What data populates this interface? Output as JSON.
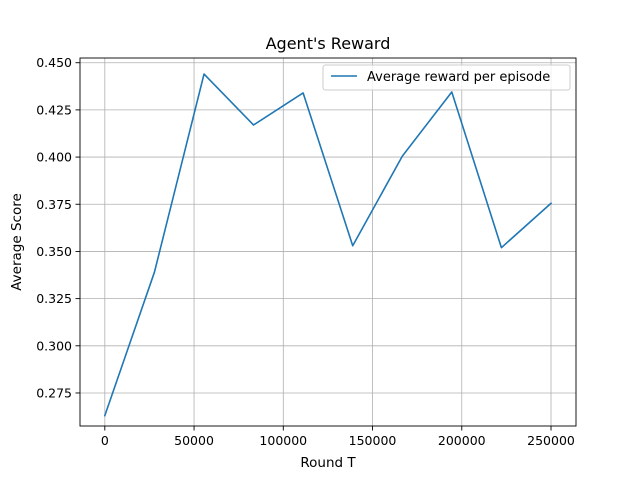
{
  "chart_data": {
    "type": "line",
    "title": "Agent's Reward",
    "xlabel": "Round T",
    "ylabel": "Average Score",
    "xlim": [
      -13900,
      264000
    ],
    "ylim": [
      0.2575,
      0.4525
    ],
    "grid": true,
    "legend_position": "top-right",
    "x_ticks": [
      0,
      50000,
      100000,
      150000,
      200000,
      250000
    ],
    "x_tick_labels": [
      "0",
      "50000",
      "100000",
      "150000",
      "200000",
      "250000"
    ],
    "y_ticks": [
      0.275,
      0.3,
      0.325,
      0.35,
      0.375,
      0.4,
      0.425,
      0.45
    ],
    "y_tick_labels": [
      "0.275",
      "0.300",
      "0.325",
      "0.350",
      "0.375",
      "0.400",
      "0.425",
      "0.450"
    ],
    "series": [
      {
        "name": "Average reward per episode",
        "color": "#1f77b4",
        "x": [
          0,
          27800,
          55600,
          83300,
          111100,
          138900,
          166700,
          194400,
          222200,
          250000
        ],
        "y": [
          0.263,
          0.339,
          0.444,
          0.417,
          0.434,
          0.353,
          0.4005,
          0.4345,
          0.352,
          0.3755
        ]
      }
    ]
  },
  "colors": {
    "line": "#1f77b4",
    "grid": "#b0b0b0",
    "axes": "#000000",
    "background": "#ffffff"
  }
}
